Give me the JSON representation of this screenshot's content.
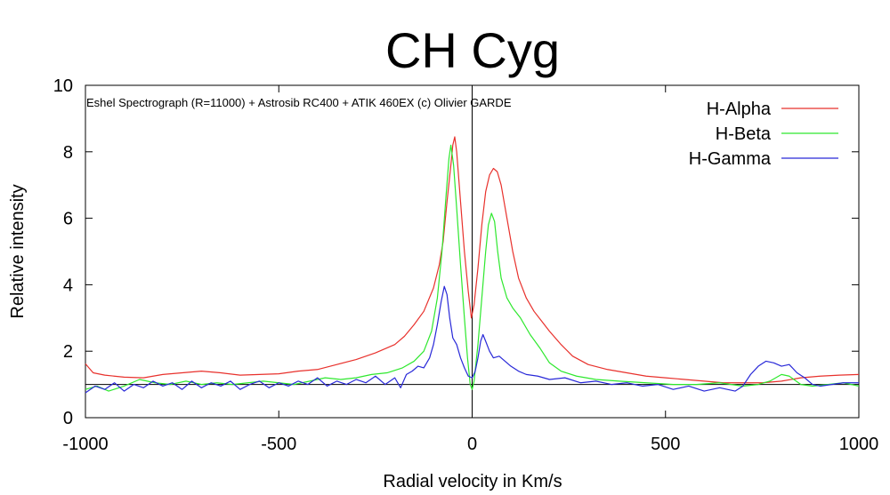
{
  "chart_data": {
    "type": "line",
    "title": "CH Cyg",
    "xlabel": "Radial velocity in Km/s",
    "ylabel": "Relative intensity",
    "annotation": "Eshel Spectrograph (R=11000) + Astrosib RC400 + ATIK 460EX (c) Olivier GARDE",
    "xlim": [
      -1000,
      1000
    ],
    "ylim": [
      0,
      10
    ],
    "xticks": [
      -1000,
      -500,
      0,
      500,
      1000
    ],
    "yticks": [
      0,
      2,
      4,
      6,
      8,
      10
    ],
    "xtick_labels": [
      "-1000",
      "-500",
      "0",
      "500",
      "1000"
    ],
    "ytick_labels": [
      "0",
      "2",
      "4",
      "6",
      "8",
      "10"
    ],
    "reference_lines": {
      "horizontal_y": 1,
      "vertical_x": 0
    },
    "legend_position": "top-right",
    "grid": false,
    "series": [
      {
        "name": "H-Alpha",
        "color": "#e8312c",
        "points": [
          [
            -1000,
            1.62
          ],
          [
            -980,
            1.35
          ],
          [
            -950,
            1.28
          ],
          [
            -900,
            1.22
          ],
          [
            -850,
            1.2
          ],
          [
            -800,
            1.3
          ],
          [
            -750,
            1.35
          ],
          [
            -700,
            1.4
          ],
          [
            -650,
            1.35
          ],
          [
            -600,
            1.28
          ],
          [
            -550,
            1.3
          ],
          [
            -500,
            1.32
          ],
          [
            -450,
            1.4
          ],
          [
            -400,
            1.45
          ],
          [
            -350,
            1.6
          ],
          [
            -300,
            1.75
          ],
          [
            -250,
            1.95
          ],
          [
            -200,
            2.2
          ],
          [
            -175,
            2.45
          ],
          [
            -150,
            2.8
          ],
          [
            -125,
            3.2
          ],
          [
            -100,
            3.9
          ],
          [
            -85,
            4.6
          ],
          [
            -75,
            5.3
          ],
          [
            -65,
            6.5
          ],
          [
            -55,
            7.6
          ],
          [
            -50,
            8.2
          ],
          [
            -45,
            8.45
          ],
          [
            -40,
            8.0
          ],
          [
            -30,
            6.5
          ],
          [
            -20,
            5.0
          ],
          [
            -10,
            3.8
          ],
          [
            -2,
            3.0
          ],
          [
            5,
            3.4
          ],
          [
            15,
            4.5
          ],
          [
            25,
            5.8
          ],
          [
            35,
            6.8
          ],
          [
            45,
            7.3
          ],
          [
            55,
            7.5
          ],
          [
            65,
            7.4
          ],
          [
            75,
            7.0
          ],
          [
            90,
            6.0
          ],
          [
            105,
            5.0
          ],
          [
            120,
            4.2
          ],
          [
            140,
            3.6
          ],
          [
            160,
            3.2
          ],
          [
            180,
            2.9
          ],
          [
            200,
            2.6
          ],
          [
            230,
            2.2
          ],
          [
            260,
            1.85
          ],
          [
            300,
            1.6
          ],
          [
            350,
            1.45
          ],
          [
            400,
            1.35
          ],
          [
            450,
            1.25
          ],
          [
            500,
            1.2
          ],
          [
            550,
            1.15
          ],
          [
            600,
            1.1
          ],
          [
            650,
            1.05
          ],
          [
            700,
            1.05
          ],
          [
            750,
            1.05
          ],
          [
            800,
            1.1
          ],
          [
            850,
            1.2
          ],
          [
            900,
            1.25
          ],
          [
            950,
            1.28
          ],
          [
            1000,
            1.3
          ]
        ]
      },
      {
        "name": "H-Beta",
        "color": "#2ee82e",
        "points": [
          [
            -1000,
            0.85
          ],
          [
            -970,
            0.95
          ],
          [
            -940,
            0.8
          ],
          [
            -900,
            0.95
          ],
          [
            -860,
            1.15
          ],
          [
            -820,
            1.05
          ],
          [
            -780,
            1.0
          ],
          [
            -740,
            1.1
          ],
          [
            -700,
            1.0
          ],
          [
            -660,
            1.05
          ],
          [
            -620,
            1.0
          ],
          [
            -580,
            1.05
          ],
          [
            -540,
            1.1
          ],
          [
            -500,
            1.05
          ],
          [
            -460,
            1.0
          ],
          [
            -420,
            1.1
          ],
          [
            -380,
            1.2
          ],
          [
            -340,
            1.15
          ],
          [
            -300,
            1.2
          ],
          [
            -260,
            1.3
          ],
          [
            -220,
            1.35
          ],
          [
            -180,
            1.5
          ],
          [
            -150,
            1.7
          ],
          [
            -125,
            2.0
          ],
          [
            -105,
            2.6
          ],
          [
            -90,
            3.6
          ],
          [
            -78,
            5.0
          ],
          [
            -68,
            6.6
          ],
          [
            -60,
            7.8
          ],
          [
            -55,
            8.2
          ],
          [
            -48,
            7.6
          ],
          [
            -40,
            6.3
          ],
          [
            -30,
            4.6
          ],
          [
            -20,
            3.0
          ],
          [
            -12,
            1.8
          ],
          [
            -5,
            1.0
          ],
          [
            0,
            0.85
          ],
          [
            5,
            1.1
          ],
          [
            15,
            2.2
          ],
          [
            25,
            3.6
          ],
          [
            35,
            5.0
          ],
          [
            42,
            5.8
          ],
          [
            50,
            6.15
          ],
          [
            58,
            5.9
          ],
          [
            66,
            5.0
          ],
          [
            75,
            4.2
          ],
          [
            90,
            3.6
          ],
          [
            105,
            3.3
          ],
          [
            125,
            3.0
          ],
          [
            150,
            2.5
          ],
          [
            175,
            2.1
          ],
          [
            200,
            1.65
          ],
          [
            230,
            1.4
          ],
          [
            270,
            1.25
          ],
          [
            320,
            1.15
          ],
          [
            380,
            1.1
          ],
          [
            450,
            1.05
          ],
          [
            520,
            1.0
          ],
          [
            580,
            1.0
          ],
          [
            640,
            1.05
          ],
          [
            700,
            0.95
          ],
          [
            740,
            1.0
          ],
          [
            770,
            1.1
          ],
          [
            800,
            1.3
          ],
          [
            820,
            1.25
          ],
          [
            850,
            1.0
          ],
          [
            880,
            0.95
          ],
          [
            920,
            1.0
          ],
          [
            960,
            1.05
          ],
          [
            1000,
            0.95
          ]
        ]
      },
      {
        "name": "H-Gamma",
        "color": "#2828d8",
        "points": [
          [
            -1000,
            0.75
          ],
          [
            -975,
            0.95
          ],
          [
            -950,
            0.85
          ],
          [
            -925,
            1.05
          ],
          [
            -900,
            0.8
          ],
          [
            -875,
            1.0
          ],
          [
            -850,
            0.9
          ],
          [
            -825,
            1.1
          ],
          [
            -800,
            0.95
          ],
          [
            -775,
            1.05
          ],
          [
            -750,
            0.85
          ],
          [
            -725,
            1.1
          ],
          [
            -700,
            0.9
          ],
          [
            -675,
            1.05
          ],
          [
            -650,
            0.95
          ],
          [
            -625,
            1.1
          ],
          [
            -600,
            0.85
          ],
          [
            -575,
            1.0
          ],
          [
            -550,
            1.1
          ],
          [
            -525,
            0.9
          ],
          [
            -500,
            1.05
          ],
          [
            -475,
            0.95
          ],
          [
            -450,
            1.1
          ],
          [
            -425,
            1.0
          ],
          [
            -400,
            1.2
          ],
          [
            -375,
            0.95
          ],
          [
            -350,
            1.1
          ],
          [
            -325,
            1.0
          ],
          [
            -300,
            1.15
          ],
          [
            -275,
            1.05
          ],
          [
            -250,
            1.25
          ],
          [
            -225,
            1.0
          ],
          [
            -200,
            1.2
          ],
          [
            -185,
            0.9
          ],
          [
            -170,
            1.3
          ],
          [
            -155,
            1.4
          ],
          [
            -140,
            1.55
          ],
          [
            -125,
            1.5
          ],
          [
            -110,
            1.8
          ],
          [
            -100,
            2.2
          ],
          [
            -90,
            2.8
          ],
          [
            -80,
            3.5
          ],
          [
            -72,
            3.95
          ],
          [
            -65,
            3.7
          ],
          [
            -58,
            3.0
          ],
          [
            -50,
            2.4
          ],
          [
            -40,
            2.2
          ],
          [
            -30,
            1.8
          ],
          [
            -20,
            1.5
          ],
          [
            -10,
            1.25
          ],
          [
            0,
            1.2
          ],
          [
            8,
            1.4
          ],
          [
            15,
            1.8
          ],
          [
            22,
            2.3
          ],
          [
            28,
            2.5
          ],
          [
            35,
            2.3
          ],
          [
            45,
            2.0
          ],
          [
            55,
            1.8
          ],
          [
            70,
            1.85
          ],
          [
            85,
            1.7
          ],
          [
            100,
            1.55
          ],
          [
            120,
            1.4
          ],
          [
            140,
            1.3
          ],
          [
            170,
            1.25
          ],
          [
            200,
            1.15
          ],
          [
            240,
            1.2
          ],
          [
            280,
            1.05
          ],
          [
            320,
            1.1
          ],
          [
            360,
            1.0
          ],
          [
            400,
            1.05
          ],
          [
            440,
            0.95
          ],
          [
            480,
            1.0
          ],
          [
            520,
            0.85
          ],
          [
            560,
            0.95
          ],
          [
            600,
            0.8
          ],
          [
            640,
            0.9
          ],
          [
            680,
            0.8
          ],
          [
            700,
            0.95
          ],
          [
            720,
            1.3
          ],
          [
            740,
            1.55
          ],
          [
            760,
            1.7
          ],
          [
            780,
            1.65
          ],
          [
            800,
            1.55
          ],
          [
            820,
            1.6
          ],
          [
            840,
            1.35
          ],
          [
            860,
            1.2
          ],
          [
            880,
            1.0
          ],
          [
            900,
            0.95
          ],
          [
            930,
            1.0
          ],
          [
            960,
            1.05
          ],
          [
            1000,
            1.05
          ]
        ]
      }
    ]
  }
}
